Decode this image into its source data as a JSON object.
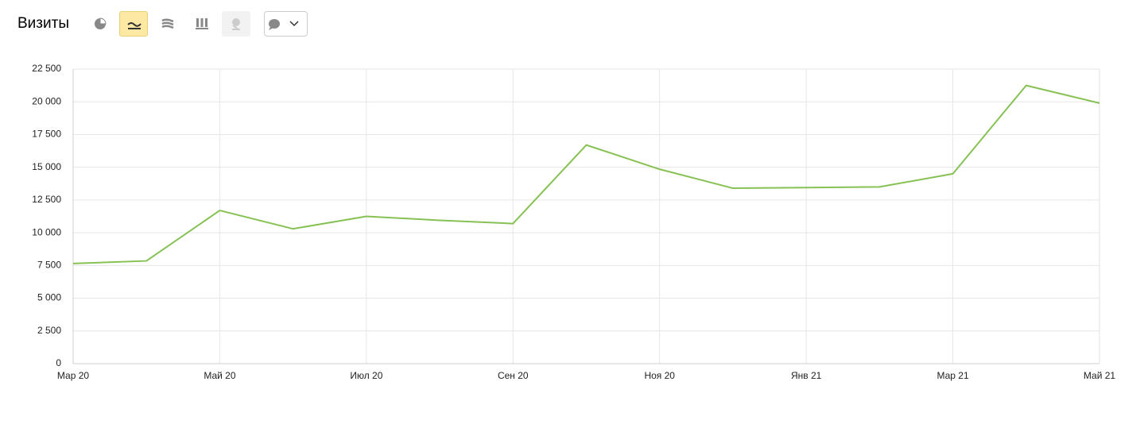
{
  "chart_data": {
    "type": "line",
    "title": "Визиты",
    "categories": [
      "Мар 20",
      null,
      "Май 20",
      null,
      "Июл 20",
      null,
      "Сен 20",
      null,
      "Ноя 20",
      null,
      "Янв 21",
      null,
      "Мар 21",
      null,
      "Май 21"
    ],
    "values": [
      7650,
      7850,
      11700,
      10300,
      11250,
      10950,
      10700,
      16700,
      14850,
      13400,
      13450,
      13500,
      14500,
      21250,
      19900
    ],
    "color": "#86c154",
    "ylim": [
      0,
      22500
    ],
    "yticks": [
      0,
      {
        "value": 2500,
        "label": "2 500"
      },
      {
        "value": 5000,
        "label": "5 000"
      },
      {
        "value": 7500,
        "label": "7 500"
      },
      {
        "value": 10000,
        "label": "10 000"
      },
      {
        "value": 12500,
        "label": "12 500"
      },
      {
        "value": 15000,
        "label": "15 000"
      },
      {
        "value": 17500,
        "label": "17 500"
      },
      {
        "value": 20000,
        "label": "20 000"
      },
      {
        "value": 22500,
        "label": "22 500"
      }
    ],
    "grid": true
  }
}
